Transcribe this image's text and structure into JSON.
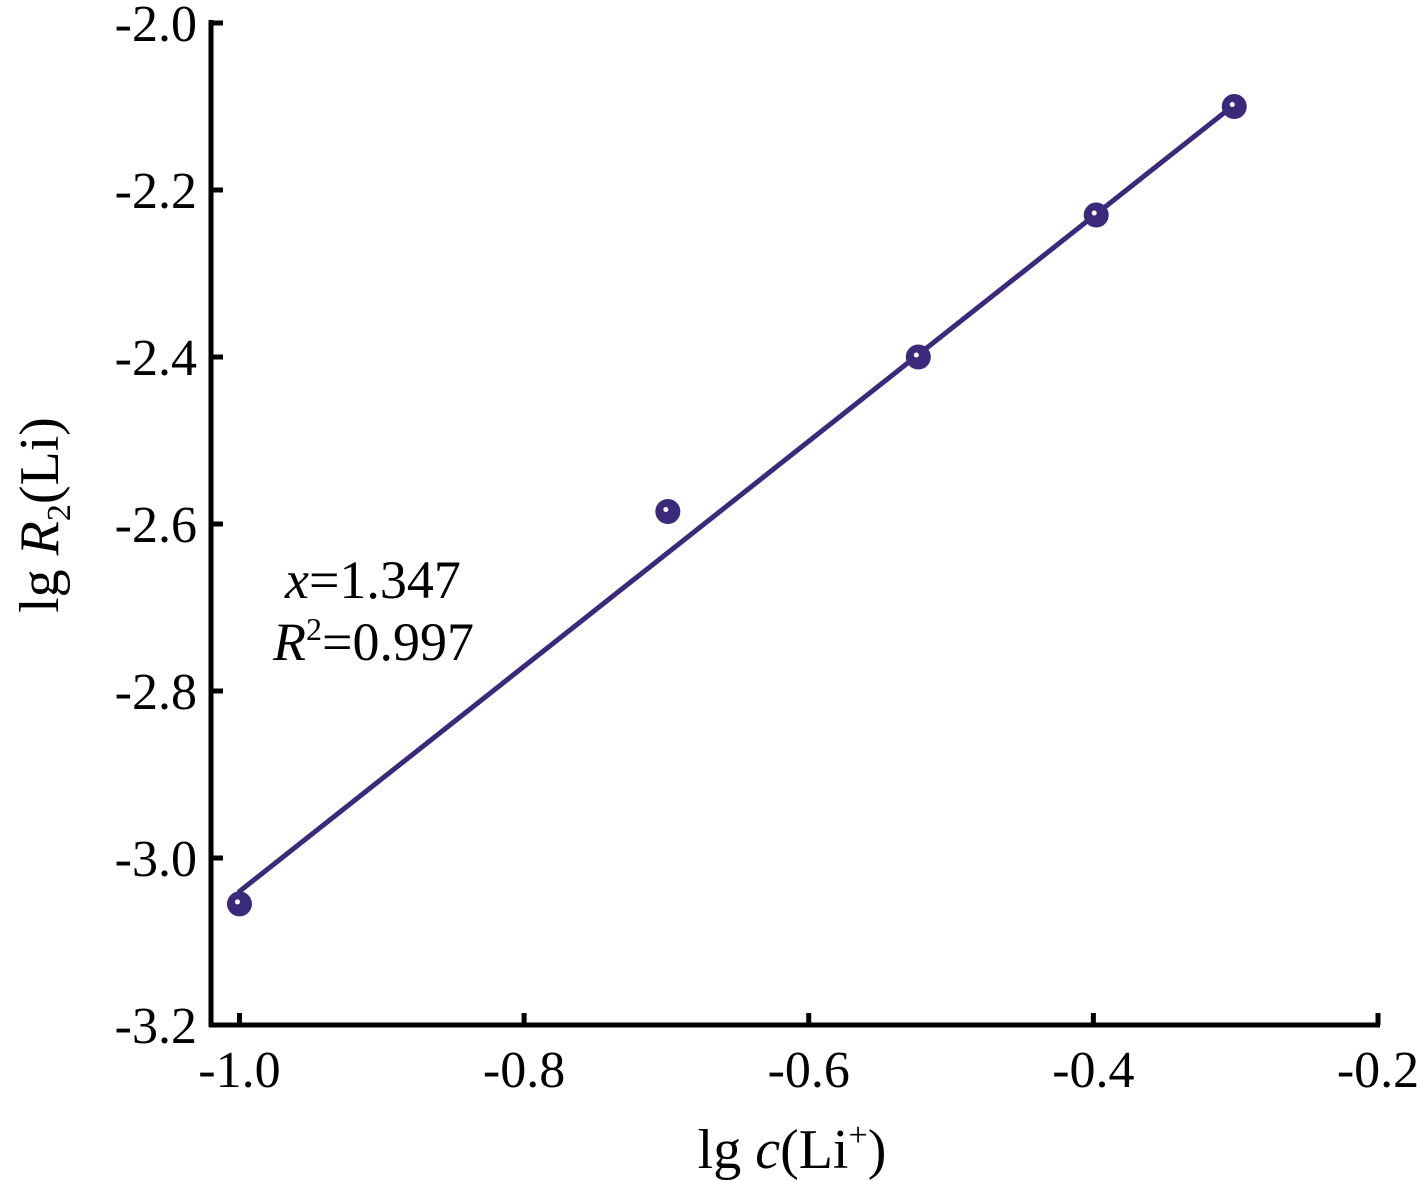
{
  "chart_data": {
    "type": "scatter",
    "title": "",
    "xlabel": {
      "prefix": "lg ",
      "italic": "c",
      "body": "(Li",
      "sup": "+",
      "suffix": ")"
    },
    "ylabel": {
      "prefix": "lg ",
      "italic": "R",
      "sub": "2",
      "suffix": "(Li)"
    },
    "xlim": [
      -1.02,
      -0.2
    ],
    "ylim": [
      -3.2,
      -2.0
    ],
    "xticks": [
      -1.0,
      -0.8,
      -0.6,
      -0.4,
      -0.2
    ],
    "xtick_labels": [
      "-1.0",
      "-0.8",
      "-0.6",
      "-0.4",
      "-0.2"
    ],
    "yticks": [
      -2.0,
      -2.2,
      -2.4,
      -2.6,
      -2.8,
      -3.0,
      -3.2
    ],
    "ytick_labels": [
      "-2.0",
      "-2.2",
      "-2.4",
      "-2.6",
      "-2.8",
      "-3.0",
      "-3.2"
    ],
    "grid": false,
    "legend": false,
    "series": [
      {
        "x": [
          -1.0,
          -0.699,
          -0.523,
          -0.398,
          -0.301
        ],
        "y": [
          -3.055,
          -2.585,
          -2.4,
          -2.23,
          -2.1
        ],
        "color": "#3b2a7a"
      }
    ],
    "fit_line": {
      "x": [
        -1.0,
        -0.301
      ],
      "y": [
        -3.04,
        -2.098
      ],
      "color": "#3b2a7a"
    },
    "annotations": {
      "slope": {
        "italic": "x",
        "text": "=1.347"
      },
      "r2": {
        "italic": "R",
        "sup": "2",
        "text": "=0.997"
      }
    }
  }
}
